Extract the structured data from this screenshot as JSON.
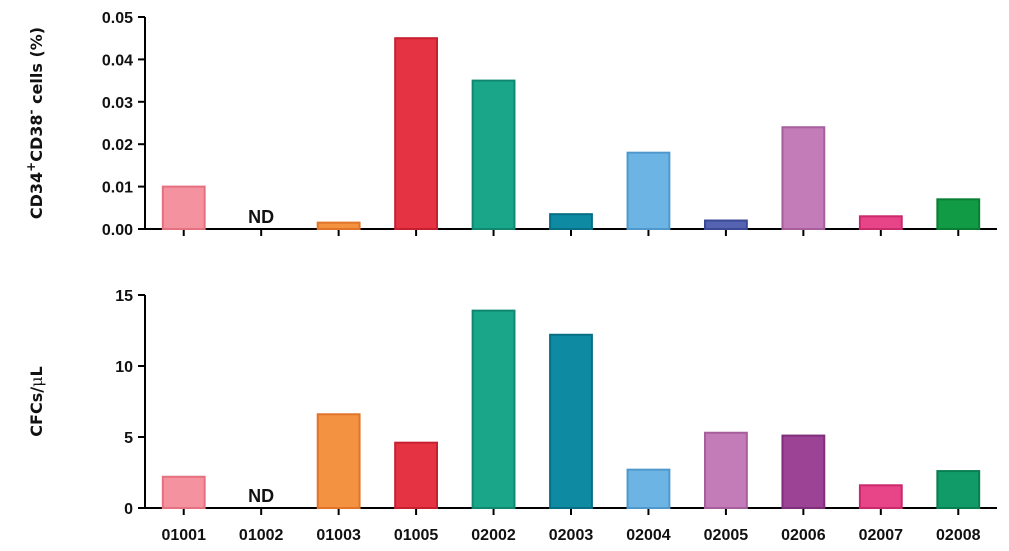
{
  "chart_data": [
    {
      "type": "bar",
      "categories": [
        "01001",
        "01002",
        "01003",
        "01005",
        "02002",
        "02003",
        "02004",
        "02005",
        "02006",
        "02007",
        "02008"
      ],
      "values": [
        0.01,
        null,
        0.0015,
        0.045,
        0.035,
        0.0035,
        0.018,
        0.002,
        0.024,
        0.003,
        0.007
      ],
      "annotations": [
        {
          "category": "01002",
          "text": "ND"
        }
      ],
      "ylabel_parts": {
        "a": "CD34",
        "sup1": "+",
        "b": "CD38",
        "sup2": "-",
        "c": " cells (%)"
      },
      "ylim": [
        0,
        0.05
      ],
      "yticks": [
        "0.00",
        "0.01",
        "0.02",
        "0.03",
        "0.04",
        "0.05"
      ],
      "colors": [
        "#f4929f",
        "#e8e8e8",
        "#f39240",
        "#e63344",
        "#1aa689",
        "#0e8aa3",
        "#6cb4e4",
        "#5563b0",
        "#c47cb8",
        "#e84488",
        "#119b45"
      ],
      "strokes": [
        "#e5707f",
        "#cccccc",
        "#e07428",
        "#c62030",
        "#108870",
        "#076f85",
        "#4f98cc",
        "#3a4896",
        "#a65e9c",
        "#c82a6c",
        "#087f34"
      ]
    },
    {
      "type": "bar",
      "categories": [
        "01001",
        "01002",
        "01003",
        "01005",
        "02002",
        "02003",
        "02004",
        "02005",
        "02006",
        "02007",
        "02008"
      ],
      "values": [
        2.2,
        null,
        6.6,
        4.6,
        13.9,
        12.2,
        2.7,
        5.3,
        5.1,
        1.6,
        2.6
      ],
      "annotations": [
        {
          "category": "01002",
          "text": "ND"
        }
      ],
      "ylabel_parts": {
        "a": "CFCs/",
        "mu": "μ",
        "c": "L"
      },
      "ylim": [
        0,
        15
      ],
      "yticks": [
        "0",
        "5",
        "10",
        "15"
      ],
      "colors": [
        "#f4929f",
        "#e8e8e8",
        "#f39240",
        "#e63344",
        "#1aa689",
        "#0e8aa3",
        "#6cb4e4",
        "#c47cb8",
        "#9d4396",
        "#e84488",
        "#119b68"
      ],
      "strokes": [
        "#e5707f",
        "#cccccc",
        "#e07428",
        "#c62030",
        "#108870",
        "#076f85",
        "#4f98cc",
        "#a65e9c",
        "#7e2e7a",
        "#c82a6c",
        "#087f50"
      ]
    }
  ]
}
